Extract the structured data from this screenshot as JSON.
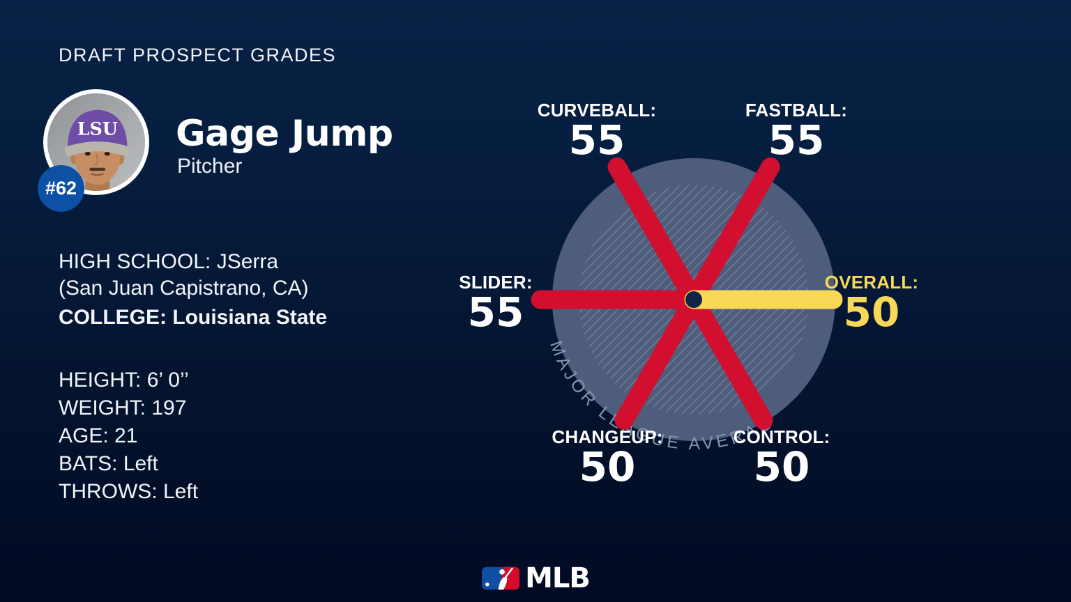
{
  "header": {
    "title": "DRAFT PROSPECT GRADES"
  },
  "player": {
    "rank": "#62",
    "name": "Gage Jump",
    "position": "Pitcher",
    "cap_text": "LSU",
    "bio": {
      "high_school_label": "HIGH SCHOOL:",
      "high_school": "JSerra (San Juan Capistrano, CA)",
      "college_label": "COLLEGE:",
      "college": "Louisiana State",
      "stats": [
        {
          "label": "HEIGHT:",
          "value": "6’ 0’’"
        },
        {
          "label": "WEIGHT:",
          "value": "197"
        },
        {
          "label": "AGE:",
          "value": "21"
        },
        {
          "label": "BATS:",
          "value": "Left"
        },
        {
          "label": "THROWS:",
          "value": "Left"
        }
      ]
    }
  },
  "chart_data": {
    "type": "radial-spoke",
    "categories": [
      "Curveball",
      "Fastball",
      "Slider",
      "Changeup",
      "Control",
      "Overall"
    ],
    "values": [
      55,
      55,
      55,
      50,
      50,
      50
    ],
    "average_value": 50,
    "average_ring_label": "MAJOR LEAGUE AVERAGE",
    "scale": "20-80 scouting scale, ring radius = MLB average (50)",
    "colors": {
      "tool_spoke": "#d20f2f",
      "overall_spoke": "#f8d857",
      "ring_fill": "#4e5d7c",
      "hatch_line": "#7e8aa4",
      "hub_dot": "#0f2446"
    },
    "grades": [
      {
        "name": "Curveball",
        "label": "CURVEBALL:",
        "value": 55,
        "angle_deg": 120,
        "color": "#d20f2f"
      },
      {
        "name": "Fastball",
        "label": "FASTBALL:",
        "value": 55,
        "angle_deg": 60,
        "color": "#d20f2f"
      },
      {
        "name": "Slider",
        "label": "SLIDER:",
        "value": 55,
        "angle_deg": 180,
        "color": "#d20f2f"
      },
      {
        "name": "Changeup",
        "label": "CHANGEUP:",
        "value": 50,
        "angle_deg": 240,
        "color": "#d20f2f"
      },
      {
        "name": "Control",
        "label": "CONTROL:",
        "value": 50,
        "angle_deg": 300,
        "color": "#d20f2f"
      },
      {
        "name": "Overall",
        "label": "OVERALL:",
        "value": 50,
        "angle_deg": 0,
        "color": "#f8d857",
        "highlight": true
      }
    ]
  },
  "footer": {
    "brand": "MLB"
  }
}
